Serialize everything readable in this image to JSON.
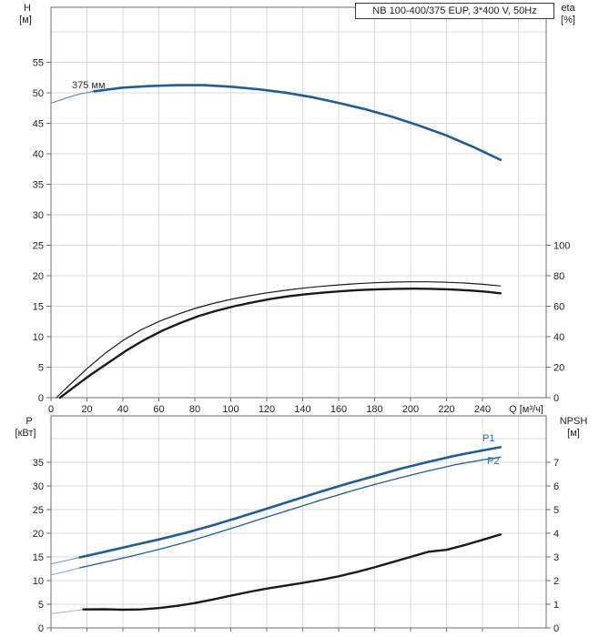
{
  "title_box": "NB 100-400/375 EUP, 3*400 V, 50Hz",
  "colors": {
    "curve_blue": "#1f5c99",
    "curve_blue_light": "#7d9fc9",
    "curve_black": "#1a1a1a",
    "curve_gray_light": "#a8a8a8",
    "grid": "#d9d9d9",
    "frame": "#6e6e6e",
    "text": "#222222",
    "label_blue": "#2e6da4"
  },
  "top_chart": {
    "left_axis_name": "H",
    "left_axis_unit": "[м]",
    "right_axis_name": "eta",
    "right_axis_unit": "[%]",
    "curve_label": "375 мм"
  },
  "bottom_chart": {
    "left_axis_name": "P",
    "left_axis_unit": "[кВт]",
    "right_axis_name": "NPSH",
    "right_axis_unit": "[м]",
    "p1_label": "P1",
    "p2_label": "P2"
  },
  "chart_data": [
    {
      "type": "line",
      "title": "NB 100-400/375 EUP, 3*400 V, 50Hz",
      "xlabel": "Q [м³/ч]",
      "ylabel_left": "H [м]",
      "ylabel_right": "eta [%]",
      "x_ticks": [
        0,
        20,
        40,
        60,
        80,
        100,
        120,
        140,
        160,
        180,
        200,
        220,
        240
      ],
      "x_tick_step": 20,
      "xlim": [
        0,
        275
      ],
      "left_ticks": [
        0,
        5,
        10,
        15,
        20,
        25,
        30,
        35,
        40,
        45,
        50,
        55
      ],
      "left_per_grid": 5,
      "ylim_left": [
        0,
        64
      ],
      "right_ticks": [
        0,
        20,
        40,
        60,
        80,
        100
      ],
      "right_per_grid": 20,
      "show_x_labels": true,
      "series": [
        {
          "name": "head-curve-thin-extension",
          "axis": "left",
          "color": "#6b8cb8",
          "width": 1.2,
          "points": [
            [
              0,
              48.3
            ],
            [
              8,
              49.1
            ],
            [
              16,
              49.8
            ],
            [
              24,
              50.25
            ],
            [
              32,
              50.6
            ]
          ]
        },
        {
          "name": "head-curve-375mm",
          "axis": "left",
          "color": "#1f5c99",
          "width": 2.6,
          "points": [
            [
              24,
              50.25
            ],
            [
              40,
              50.85
            ],
            [
              55,
              51.1
            ],
            [
              70,
              51.25
            ],
            [
              85,
              51.25
            ],
            [
              100,
              51.0
            ],
            [
              115,
              50.6
            ],
            [
              130,
              50.05
            ],
            [
              145,
              49.3
            ],
            [
              160,
              48.35
            ],
            [
              175,
              47.3
            ],
            [
              190,
              46.05
            ],
            [
              205,
              44.6
            ],
            [
              220,
              43.0
            ],
            [
              235,
              41.1
            ],
            [
              250,
              39.0
            ]
          ]
        },
        {
          "name": "eta-curve-upper",
          "axis": "right",
          "color": "#1a1a1a",
          "width": 1.2,
          "points": [
            [
              3,
              0
            ],
            [
              10,
              8
            ],
            [
              20,
              19
            ],
            [
              30,
              29
            ],
            [
              40,
              37.5
            ],
            [
              50,
              44.5
            ],
            [
              60,
              50
            ],
            [
              70,
              54.5
            ],
            [
              80,
              58.5
            ],
            [
              90,
              61.8
            ],
            [
              100,
              64.5
            ],
            [
              110,
              66.8
            ],
            [
              120,
              68.8
            ],
            [
              130,
              70.4
            ],
            [
              140,
              71.8
            ],
            [
              150,
              73
            ],
            [
              160,
              74
            ],
            [
              170,
              74.8
            ],
            [
              180,
              75.4
            ],
            [
              190,
              75.8
            ],
            [
              200,
              76
            ],
            [
              210,
              76
            ],
            [
              220,
              75.7
            ],
            [
              230,
              75.2
            ],
            [
              240,
              74.4
            ],
            [
              250,
              73.3
            ]
          ]
        },
        {
          "name": "eta-curve-lower",
          "axis": "right",
          "color": "#1a1a1a",
          "width": 2.4,
          "points": [
            [
              5,
              0
            ],
            [
              14,
              8
            ],
            [
              22,
              15
            ],
            [
              32,
              23
            ],
            [
              42,
              31
            ],
            [
              52,
              38
            ],
            [
              62,
              44
            ],
            [
              72,
              49
            ],
            [
              82,
              53.5
            ],
            [
              92,
              57
            ],
            [
              102,
              60
            ],
            [
              112,
              62.5
            ],
            [
              122,
              64.7
            ],
            [
              132,
              66.5
            ],
            [
              142,
              67.9
            ],
            [
              152,
              69
            ],
            [
              162,
              69.9
            ],
            [
              172,
              70.6
            ],
            [
              182,
              71.1
            ],
            [
              192,
              71.4
            ],
            [
              202,
              71.5
            ],
            [
              212,
              71.4
            ],
            [
              222,
              71.0
            ],
            [
              232,
              70.4
            ],
            [
              242,
              69.5
            ],
            [
              250,
              68.5
            ]
          ]
        }
      ]
    },
    {
      "type": "line",
      "title": "",
      "xlabel": "",
      "ylabel_left": "P [кВт]",
      "ylabel_right": "NPSH [м]",
      "x_ticks": [
        0,
        20,
        40,
        60,
        80,
        100,
        120,
        140,
        160,
        180,
        200,
        220,
        240
      ],
      "x_tick_step": 20,
      "xlim": [
        0,
        275
      ],
      "left_ticks": [
        0,
        5,
        10,
        15,
        20,
        25,
        30,
        35
      ],
      "left_per_grid": 5,
      "ylim_left": [
        0,
        44.8
      ],
      "right_ticks": [
        0,
        1,
        2,
        3,
        4,
        5,
        6,
        7
      ],
      "right_per_grid": 1,
      "show_x_labels": false,
      "series": [
        {
          "name": "p1-thin-extension",
          "axis": "left",
          "color": "#7d9fc9",
          "width": 1.2,
          "points": [
            [
              0,
              13.5
            ],
            [
              8,
              14.2
            ],
            [
              16,
              14.9
            ]
          ]
        },
        {
          "name": "p1-curve",
          "axis": "left",
          "color": "#1f5c99",
          "width": 2.6,
          "points": [
            [
              16,
              14.9
            ],
            [
              30,
              16.1
            ],
            [
              45,
              17.4
            ],
            [
              60,
              18.7
            ],
            [
              75,
              20.1
            ],
            [
              90,
              21.7
            ],
            [
              105,
              23.4
            ],
            [
              120,
              25.2
            ],
            [
              135,
              27.0
            ],
            [
              150,
              28.8
            ],
            [
              165,
              30.5
            ],
            [
              180,
              32.1
            ],
            [
              195,
              33.7
            ],
            [
              210,
              35.1
            ],
            [
              225,
              36.4
            ],
            [
              240,
              37.5
            ],
            [
              250,
              38.2
            ]
          ]
        },
        {
          "name": "p2-thin-extension",
          "axis": "left",
          "color": "#7d9fc9",
          "width": 1.0,
          "points": [
            [
              0,
              11.2
            ],
            [
              8,
              11.9
            ],
            [
              16,
              12.7
            ]
          ]
        },
        {
          "name": "p2-curve",
          "axis": "left",
          "color": "#1f5c99",
          "width": 1.3,
          "points": [
            [
              16,
              12.7
            ],
            [
              30,
              13.9
            ],
            [
              45,
              15.2
            ],
            [
              60,
              16.6
            ],
            [
              75,
              18.1
            ],
            [
              90,
              19.8
            ],
            [
              105,
              21.6
            ],
            [
              120,
              23.4
            ],
            [
              135,
              25.2
            ],
            [
              150,
              27.0
            ],
            [
              165,
              28.7
            ],
            [
              180,
              30.3
            ],
            [
              195,
              31.8
            ],
            [
              210,
              33.2
            ],
            [
              225,
              34.5
            ],
            [
              240,
              35.5
            ],
            [
              250,
              36.1
            ]
          ]
        },
        {
          "name": "npsh-thin-extension",
          "axis": "right",
          "color": "#a8a8a8",
          "width": 0.9,
          "points": [
            [
              0,
              0.6
            ],
            [
              10,
              0.7
            ],
            [
              18,
              0.78
            ]
          ]
        },
        {
          "name": "npsh-curve",
          "axis": "right",
          "color": "#1a1a1a",
          "width": 2.4,
          "points": [
            [
              18,
              0.78
            ],
            [
              30,
              0.79
            ],
            [
              40,
              0.77
            ],
            [
              50,
              0.78
            ],
            [
              60,
              0.84
            ],
            [
              70,
              0.93
            ],
            [
              80,
              1.05
            ],
            [
              90,
              1.2
            ],
            [
              100,
              1.36
            ],
            [
              110,
              1.52
            ],
            [
              120,
              1.66
            ],
            [
              130,
              1.78
            ],
            [
              140,
              1.9
            ],
            [
              150,
              2.03
            ],
            [
              160,
              2.18
            ],
            [
              170,
              2.36
            ],
            [
              180,
              2.56
            ],
            [
              190,
              2.78
            ],
            [
              200,
              3.0
            ],
            [
              210,
              3.22
            ],
            [
              220,
              3.3
            ],
            [
              230,
              3.5
            ],
            [
              240,
              3.72
            ],
            [
              250,
              3.95
            ]
          ]
        }
      ]
    }
  ]
}
